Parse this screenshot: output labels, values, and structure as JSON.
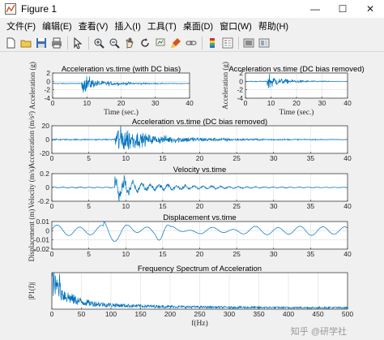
{
  "window": {
    "title": "Figure 1",
    "minimize": "—",
    "maximize": "☐",
    "close": "✕"
  },
  "menu": [
    "文件(F)",
    "编辑(E)",
    "查看(V)",
    "插入(I)",
    "工具(T)",
    "桌面(D)",
    "窗口(W)",
    "帮助(H)"
  ],
  "toolbar_icons": [
    "new-figure-icon",
    "open-folder-icon",
    "save-icon",
    "print-icon",
    "pointer-icon",
    "zoom-in-icon",
    "zoom-out-icon",
    "pan-icon",
    "rotate-icon",
    "data-cursor-icon",
    "brush-icon",
    "link-icon",
    "colorbar-icon",
    "legend-icon",
    "hide-plot-tools-icon",
    "show-plot-tools-icon"
  ],
  "colors": {
    "series": "#0072bd",
    "axes_bg": "#ffffff",
    "figure_bg": "#f0f0f0"
  },
  "watermark": "知乎 @研学社",
  "chart_data": [
    {
      "type": "line",
      "title": "Acceleration vs.time (with DC bias)",
      "xlabel": "Time (sec.)",
      "ylabel": "Acceleration (g)",
      "xlim": [
        0,
        40
      ],
      "ylim": [
        -4,
        2
      ],
      "xticks": [
        0,
        10,
        20,
        30,
        40
      ],
      "yticks": [
        -4,
        -2,
        0,
        2
      ],
      "grid": true,
      "signal": {
        "kind": "acceleration",
        "onset": 8.5,
        "peak": 2.3,
        "offset": -0.5
      }
    },
    {
      "type": "line",
      "title": "Acceleration vs.time (DC bias removed)",
      "xlabel": "Time (sec.)",
      "ylabel": "Acceleration (g)",
      "xlim": [
        0,
        40
      ],
      "ylim": [
        -4,
        2
      ],
      "xticks": [
        0,
        10,
        20,
        30,
        40
      ],
      "yticks": [
        -4,
        -2,
        0,
        2
      ],
      "grid": true,
      "signal": {
        "kind": "acceleration",
        "onset": 8.5,
        "peak": 2.3,
        "offset": 0
      }
    },
    {
      "type": "line",
      "title": "Acceleration vs.time (DC bias removed)",
      "xlabel": "",
      "ylabel": "Acceleration (m/s²)",
      "xlim": [
        0,
        40
      ],
      "ylim": [
        -20,
        20
      ],
      "xticks": [
        0,
        5,
        10,
        15,
        20,
        25,
        30,
        35,
        40
      ],
      "yticks": [
        -20,
        0,
        20
      ],
      "grid": true,
      "signal": {
        "kind": "acceleration",
        "onset": 8.5,
        "peak": 22,
        "offset": 0
      }
    },
    {
      "type": "line",
      "title": "Velocity vs.time",
      "xlabel": "",
      "ylabel": "Velocity (m/s)",
      "xlim": [
        0,
        40
      ],
      "ylim": [
        -0.2,
        0.2
      ],
      "xticks": [
        0,
        5,
        10,
        15,
        20,
        25,
        30,
        35,
        40
      ],
      "yticks": [
        -0.2,
        0,
        0.2
      ],
      "grid": true,
      "signal": {
        "kind": "velocity",
        "onset": 8.5,
        "peak": 0.22,
        "offset": 0
      }
    },
    {
      "type": "line",
      "title": "Displacement vs.time",
      "xlabel": "",
      "ylabel": "Displacement (m)",
      "xlim": [
        0,
        40
      ],
      "ylim": [
        -0.02,
        0.01
      ],
      "xticks": [
        0,
        5,
        10,
        15,
        20,
        25,
        30,
        35,
        40
      ],
      "yticks": [
        -0.02,
        -0.01,
        0,
        0.01
      ],
      "grid": true,
      "signal": {
        "kind": "displacement",
        "onset": 7,
        "peak": 0.011,
        "offset": 0
      }
    },
    {
      "type": "line",
      "title": "Frequency Spectrum of Acceleration",
      "xlabel": "f(Hz)",
      "ylabel": "|P1(f)|",
      "xlim": [
        0,
        500
      ],
      "ylim": [
        0,
        1
      ],
      "xticks": [
        0,
        50,
        100,
        150,
        200,
        250,
        300,
        350,
        400,
        450,
        500
      ],
      "yticks": [],
      "grid": true,
      "signal": {
        "kind": "spectrum",
        "onset": 0,
        "peak": 1,
        "offset": 0
      }
    }
  ]
}
